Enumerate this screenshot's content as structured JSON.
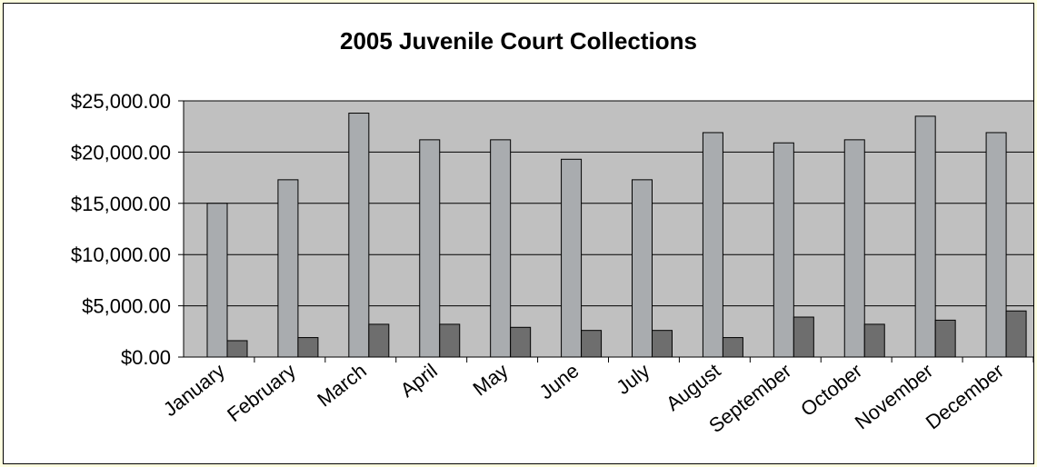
{
  "chart_data": {
    "type": "bar",
    "title": "2005 Juvenile Court Collections",
    "categories": [
      "January",
      "February",
      "March",
      "April",
      "May",
      "June",
      "July",
      "August",
      "September",
      "October",
      "November",
      "December"
    ],
    "series": [
      {
        "values": [
          15000,
          17300,
          23800,
          21200,
          21200,
          19300,
          17300,
          21900,
          20900,
          21200,
          23500,
          21900
        ]
      },
      {
        "values": [
          1600,
          1900,
          3200,
          3200,
          2900,
          2600,
          2600,
          1900,
          3900,
          3200,
          3600,
          4500
        ]
      }
    ],
    "ylim": [
      0,
      25000
    ],
    "yticks": [
      "$0.00",
      "$5,000.00",
      "$10,000.00",
      "$15,000.00",
      "$20,000.00",
      "$25,000.00"
    ],
    "grid": true,
    "colors": {
      "plot_bg": "#c0c0c0",
      "series1": "#a9acaf",
      "series2": "#6e6e6e",
      "gridline": "#000000"
    }
  }
}
